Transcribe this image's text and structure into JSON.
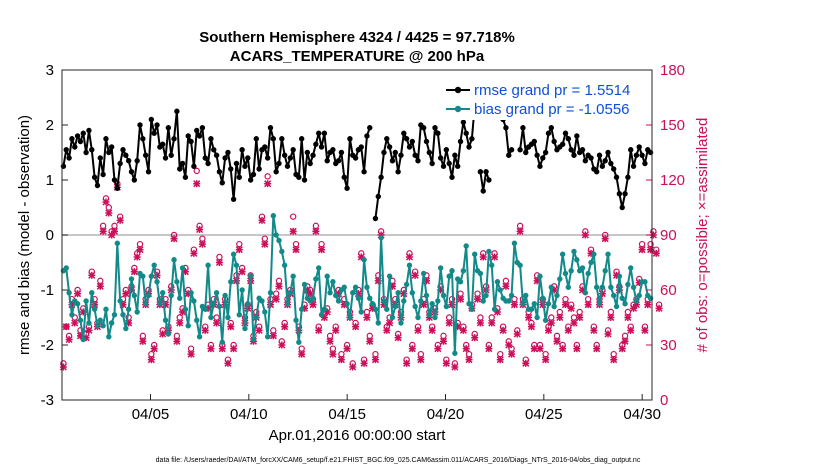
{
  "chart_data": {
    "type": "line",
    "title": "Southern Hemisphere 4324 / 4425 = 97.718%",
    "subtitle": "ACARS_TEMPERATURE @ 200 hPa",
    "xlabel": "Apr.01,2016 00:00:00 start",
    "ylabel_left": "rmse and bias (model - observation)",
    "ylabel_right": "# of obs: o=possible; ×=assimilated",
    "xlim": [
      0.5,
      30.5
    ],
    "ylim_left": [
      -3,
      3
    ],
    "ylim_right": [
      0,
      180
    ],
    "xticks": [
      {
        "value": 5,
        "label": "04/05"
      },
      {
        "value": 10,
        "label": "04/10"
      },
      {
        "value": 15,
        "label": "04/15"
      },
      {
        "value": 20,
        "label": "04/20"
      },
      {
        "value": 25,
        "label": "04/25"
      },
      {
        "value": 30,
        "label": "04/30"
      }
    ],
    "yticks_left": [
      "-3",
      "-2",
      "-1",
      "0",
      "1",
      "2",
      "3"
    ],
    "yticks_right": [
      "0",
      "30",
      "60",
      "90",
      "120",
      "150",
      "180"
    ],
    "colors": {
      "rmse": "#000000",
      "bias": "#128a8a",
      "obs": "#cc0f5a",
      "zero": "#b3b3b3"
    },
    "footnote": "data file: /Users/raeder/DAI/ATM_forcXX/CAM6_setup/f.e21.FHIST_BGC.f09_025.CAM6assim.011/ACARS_2016/Diags_NTrS_2016-04/obs_diag_output.nc",
    "series": [
      {
        "name": "rmse grand pr = 1.5514",
        "values": [
          1.25,
          1.55,
          1.4,
          1.75,
          1.6,
          1.8,
          1.7,
          1.85,
          1.5,
          1.9,
          1.55,
          1.05,
          0.9,
          1.4,
          1.1,
          1.75,
          1.5,
          1.6,
          1.0,
          0.85,
          1.3,
          1.55,
          1.45,
          1.35,
          1.15,
          1.0,
          1.35,
          2.0,
          1.75,
          1.45,
          1.15,
          2.1,
          1.85,
          2.0,
          1.6,
          1.65,
          1.4,
          1.95,
          1.45,
          1.75,
          2.25,
          1.2,
          1.3,
          1.05,
          1.8,
          1.7,
          1.25,
          1.9,
          1.8,
          1.95,
          1.4,
          1.3,
          1.75,
          1.55,
          1.45,
          1.15,
          0.95,
          1.4,
          1.5,
          1.2,
          0.65,
          1.3,
          1.05,
          1.55,
          1.25,
          1.4,
          1.0,
          1.1,
          1.75,
          1.2,
          1.55,
          1.6,
          1.4,
          1.95,
          1.75,
          1.15,
          1.3,
          1.75,
          1.45,
          1.25,
          1.4,
          1.55,
          1.1,
          1.05,
          1.75,
          1.0,
          1.5,
          1.3,
          1.45,
          1.65,
          1.85,
          1.6,
          1.85,
          1.35,
          1.5,
          1.55,
          1.3,
          1.35,
          1.5,
          1.05,
          0.85,
          1.75,
          1.45,
          1.4,
          1.55,
          1.6,
          1.15,
          1.8,
          1.95,
          null,
          0.3,
          0.7,
          1.05,
          1.5,
          1.75,
          1.6,
          1.35,
          1.5,
          1.15,
          1.45,
          1.85,
          1.75,
          1.6,
          1.7,
          1.45,
          1.35,
          2.0,
          1.95,
          1.7,
          1.5,
          1.3,
          1.95,
          1.85,
          1.4,
          1.25,
          1.55,
          1.3,
          1.05,
          1.45,
          1.25,
          1.7,
          2.05,
          1.85,
          1.6,
          1.75,
          2.35,
          null,
          1.15,
          0.8,
          1.15,
          1.0,
          null,
          null,
          null,
          null,
          2.1,
          1.95,
          1.45,
          1.55,
          null,
          null,
          1.55,
          1.95,
          1.5,
          1.6,
          1.65,
          1.7,
          1.45,
          1.25,
          1.4,
          1.5,
          1.85,
          1.95,
          1.7,
          1.55,
          1.6,
          1.65,
          1.85,
          1.75,
          1.55,
          1.45,
          1.8,
          1.5,
          1.55,
          1.35,
          1.45,
          1.4,
          1.2,
          1.15,
          1.45,
          1.25,
          1.35,
          1.5,
          1.3,
          1.2,
          1.05,
          0.75,
          0.5,
          0.75,
          1.05,
          1.55,
          1.25,
          1.45,
          1.6,
          1.45,
          1.3,
          1.55,
          1.5
        ]
      },
      {
        "name": "bias grand pr = -1.0556",
        "values": [
          -0.65,
          -0.6,
          -1.05,
          -1.45,
          -1.2,
          -1.25,
          -1.55,
          -1.9,
          -1.2,
          -1.6,
          -1.05,
          -1.35,
          -1.65,
          -1.55,
          -1.65,
          -1.35,
          -1.85,
          -1.6,
          -1.45,
          -0.15,
          -1.2,
          -1.45,
          -1.7,
          -1.35,
          -0.8,
          -1.1,
          -1.4,
          -0.7,
          -0.75,
          -1.25,
          -1.1,
          -0.75,
          -0.55,
          -0.85,
          -1.25,
          -1.05,
          -1.55,
          -1.8,
          -1.1,
          -0.45,
          -0.85,
          -1.15,
          -0.6,
          -1.35,
          -1.65,
          -1.05,
          -1.2,
          -1.55,
          -1.85,
          -1.3,
          -1.35,
          -0.55,
          -1.5,
          -1.25,
          -1.05,
          -1.3,
          -1.95,
          -1.1,
          -1.5,
          -0.85,
          -0.35,
          -0.55,
          -1.45,
          -1.0,
          -1.7,
          -1.25,
          -0.75,
          -1.9,
          -1.5,
          -1.15,
          -1.2,
          -1.4,
          -1.85,
          -1.05,
          0.35,
          0.0,
          -0.1,
          -0.3,
          -0.55,
          -1.25,
          -1.05,
          -0.75,
          -1.55,
          -1.95,
          -1.35,
          -0.9,
          -1.15,
          -1.2,
          -1.15,
          -0.8,
          -0.6,
          -1.45,
          -1.35,
          -0.75,
          -1.05,
          -0.85,
          -1.1,
          -1.2,
          -1.0,
          -0.95,
          -1.25,
          -1.5,
          -1.05,
          -0.95,
          -1.15,
          -1.4,
          -0.45,
          -0.95,
          -1.15,
          -1.25,
          -1.35,
          -1.6,
          -0.05,
          -1.2,
          -1.35,
          -0.75,
          -1.5,
          -1.3,
          -1.05,
          -1.6,
          -1.2,
          -0.9,
          -0.55,
          -1.05,
          -1.3,
          -1.5,
          -1.2,
          -0.7,
          -1.1,
          -1.45,
          -1.25,
          -1.5,
          -1.2,
          -0.6,
          -1.1,
          -1.3,
          -0.75,
          -0.65,
          -2.15,
          -0.8,
          -0.85,
          -0.65,
          -0.2,
          -1.25,
          -1.35,
          -0.35,
          -0.65,
          -0.7,
          -1.2,
          -1.1,
          -0.3,
          -0.55,
          -1.35,
          -0.85,
          -1.0,
          -1.15,
          -1.2,
          -1.2,
          -1.1,
          -0.15,
          -0.5,
          -0.55,
          -1.25,
          -1.1,
          -1.35,
          -1.35,
          -1.25,
          -1.5,
          -0.75,
          -1.15,
          -1.55,
          -1.25,
          -0.95,
          -1.3,
          -1.1,
          -0.8,
          -0.35,
          -0.7,
          -0.95,
          -0.65,
          -0.3,
          -0.45,
          -0.65,
          -0.6,
          -1.05,
          -0.7,
          -0.5,
          -0.35,
          -0.95,
          -1.25,
          -0.95,
          -0.65,
          -0.35,
          -0.95,
          -1.1,
          -1.3,
          -0.75,
          -1.15,
          -1.25,
          -0.9,
          -0.6,
          -0.95,
          -1.2,
          -1.1,
          -0.85,
          -0.85,
          -1.1,
          -1.15
        ]
      }
    ],
    "obs_possible": [
      20,
      40,
      35,
      55,
      45,
      60,
      38,
      50,
      36,
      40,
      70,
      55,
      42,
      65,
      95,
      110,
      105,
      92,
      95,
      118,
      100,
      55,
      60,
      45,
      62,
      72,
      80,
      85,
      35,
      55,
      60,
      25,
      30,
      70,
      55,
      38,
      55,
      40,
      62,
      90,
      35,
      45,
      50,
      72,
      60,
      28,
      82,
      125,
      95,
      88,
      40,
      52,
      30,
      55,
      45,
      78,
      30,
      55,
      22,
      42,
      30,
      68,
      85,
      72,
      45,
      52,
      68,
      35,
      48,
      40,
      100,
      88,
      122,
      55,
      38,
      58,
      65,
      32,
      42,
      55,
      60,
      100,
      85,
      40,
      28,
      52,
      62,
      60,
      55,
      95,
      40,
      85,
      48,
      50,
      35,
      28,
      40,
      60,
      25,
      55,
      30,
      48,
      20,
      42,
      60,
      80,
      22,
      48,
      35,
      52,
      25,
      68,
      92,
      55,
      40,
      45,
      65,
      55,
      36,
      48,
      60,
      22,
      80,
      30,
      70,
      40,
      25,
      55,
      68,
      48,
      40,
      50,
      30,
      62,
      35,
      22,
      45,
      55,
      20,
      42,
      58,
      40,
      30,
      25,
      52,
      36,
      58,
      45,
      80,
      62,
      30,
      45,
      80,
      50,
      25,
      40,
      65,
      32,
      28,
      55,
      38,
      95,
      55,
      22,
      48,
      42,
      30,
      68,
      30,
      55,
      25,
      40,
      45,
      62,
      35,
      48,
      30,
      55,
      40,
      52,
      45,
      30,
      48,
      62,
      92,
      55,
      82,
      40,
      30,
      55,
      60,
      90,
      38,
      48,
      25,
      70,
      62,
      30,
      35,
      48,
      40,
      52,
      55,
      66,
      85,
      40,
      55,
      85,
      92,
      82,
      52
    ],
    "obs_assimilated": [
      18,
      40,
      33,
      52,
      42,
      58,
      35,
      48,
      34,
      38,
      68,
      52,
      40,
      62,
      92,
      108,
      102,
      90,
      92,
      116,
      98,
      52,
      58,
      42,
      60,
      70,
      78,
      82,
      32,
      52,
      58,
      22,
      28,
      68,
      52,
      36,
      52,
      38,
      60,
      88,
      32,
      42,
      48,
      70,
      58,
      25,
      80,
      118,
      93,
      85,
      38,
      50,
      28,
      52,
      42,
      75,
      28,
      52,
      20,
      40,
      28,
      65,
      82,
      70,
      42,
      50,
      65,
      32,
      45,
      38,
      98,
      85,
      118,
      52,
      35,
      55,
      62,
      30,
      40,
      52,
      58,
      92,
      82,
      38,
      25,
      50,
      60,
      58,
      52,
      92,
      38,
      82,
      45,
      48,
      32,
      25,
      38,
      58,
      22,
      52,
      28,
      45,
      18,
      40,
      58,
      78,
      20,
      45,
      32,
      50,
      22,
      65,
      90,
      52,
      38,
      42,
      62,
      52,
      34,
      45,
      58,
      20,
      78,
      28,
      68,
      38,
      22,
      52,
      65,
      45,
      38,
      48,
      28,
      60,
      32,
      20,
      42,
      52,
      18,
      40,
      55,
      38,
      28,
      22,
      50,
      34,
      55,
      42,
      78,
      60,
      28,
      42,
      78,
      48,
      22,
      38,
      62,
      30,
      25,
      52,
      36,
      92,
      52,
      20,
      45,
      40,
      28,
      65,
      28,
      52,
      22,
      38,
      42,
      60,
      32,
      45,
      28,
      52,
      38,
      50,
      42,
      28,
      45,
      60,
      90,
      52,
      80,
      38,
      28,
      52,
      58,
      88,
      36,
      45,
      22,
      68,
      60,
      28,
      32,
      45,
      38,
      50,
      52,
      64,
      82,
      38,
      52,
      82,
      90,
      80,
      50
    ]
  }
}
